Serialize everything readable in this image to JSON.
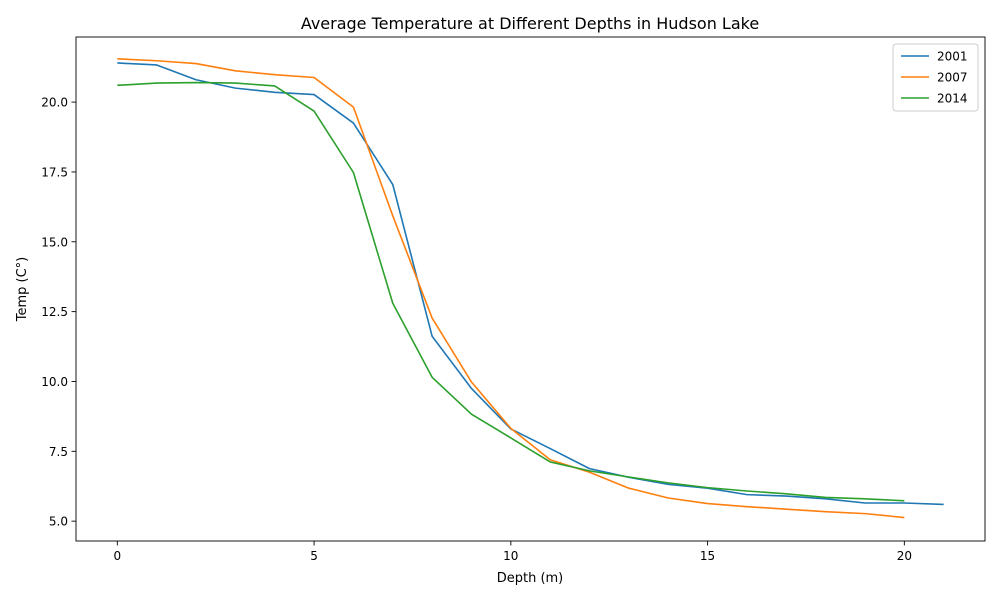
{
  "chart_data": {
    "type": "line",
    "title": "Average Temperature at Different Depths in Hudson Lake",
    "xlabel": "Depth (m)",
    "ylabel": "Temp (C°)",
    "xlim": [
      -1.05,
      22.05
    ],
    "ylim": [
      4.29,
      22.33
    ],
    "xticks": [
      0,
      5,
      10,
      15,
      20
    ],
    "xtick_labels": [
      "0",
      "5",
      "10",
      "15",
      "20"
    ],
    "yticks": [
      5.0,
      7.5,
      10.0,
      12.5,
      15.0,
      17.5,
      20.0
    ],
    "ytick_labels": [
      "5.0",
      "7.5",
      "10.0",
      "12.5",
      "15.0",
      "17.5",
      "20.0"
    ],
    "grid": false,
    "legend_position": "top-right",
    "series": [
      {
        "name": "2001",
        "color": "#1f77b4",
        "x": [
          0,
          1,
          2,
          3,
          4,
          5,
          6,
          7,
          8,
          9,
          10,
          11,
          12,
          13,
          14,
          15,
          16,
          17,
          18,
          19,
          20,
          21
        ],
        "y": [
          21.4,
          21.33,
          20.8,
          20.5,
          20.35,
          20.27,
          19.25,
          17.05,
          11.62,
          9.75,
          8.3,
          7.6,
          6.88,
          6.57,
          6.32,
          6.18,
          5.95,
          5.9,
          5.8,
          5.65,
          5.65,
          5.6
        ]
      },
      {
        "name": "2007",
        "color": "#ff7f0e",
        "x": [
          0,
          1,
          2,
          3,
          4,
          5,
          6,
          7,
          8,
          9,
          10,
          11,
          12,
          13,
          14,
          15,
          16,
          17,
          18,
          19,
          20
        ],
        "y": [
          21.55,
          21.48,
          21.38,
          21.12,
          20.98,
          20.88,
          19.82,
          15.93,
          12.27,
          9.98,
          8.32,
          7.2,
          6.75,
          6.18,
          5.83,
          5.63,
          5.52,
          5.43,
          5.34,
          5.27,
          5.13
        ]
      },
      {
        "name": "2014",
        "color": "#2ca02c",
        "x": [
          0,
          1,
          2,
          3,
          4,
          5,
          6,
          7,
          8,
          9,
          10,
          11,
          12,
          13,
          14,
          15,
          16,
          17,
          18,
          19,
          20
        ],
        "y": [
          20.6,
          20.68,
          20.7,
          20.68,
          20.58,
          19.68,
          17.48,
          12.8,
          10.15,
          8.83,
          7.98,
          7.12,
          6.8,
          6.58,
          6.37,
          6.2,
          6.08,
          5.98,
          5.85,
          5.8,
          5.73
        ]
      }
    ]
  }
}
